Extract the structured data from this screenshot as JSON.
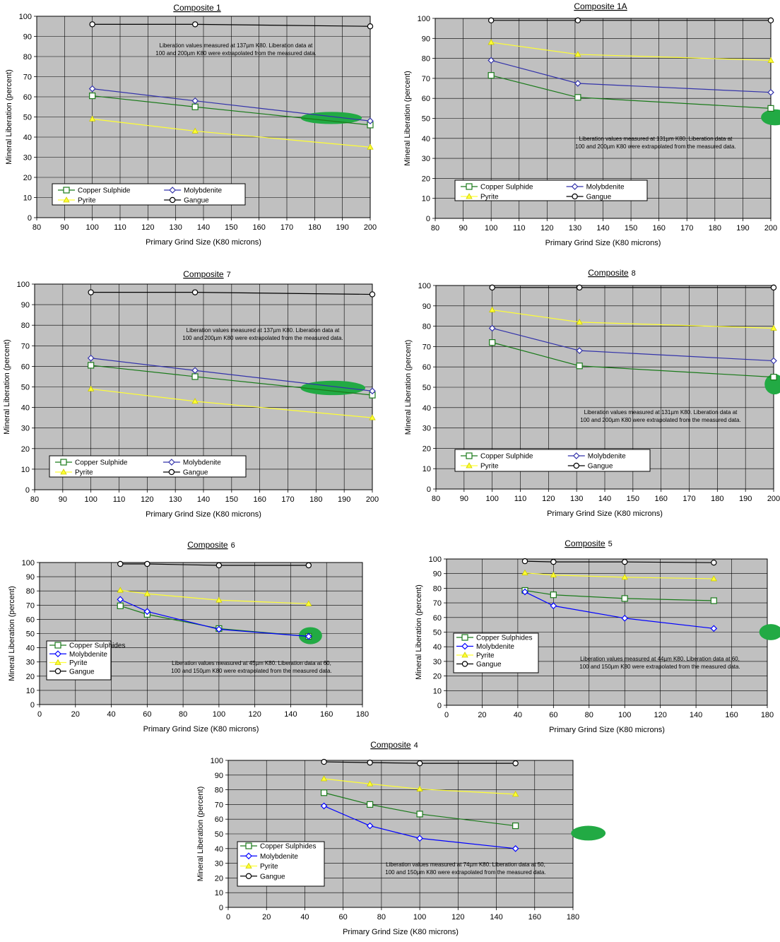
{
  "chart_data": [
    {
      "type": "line",
      "title": "Composite 1",
      "title_suffix": "",
      "xlabel": "Primary Grind Size (K80 microns)",
      "ylabel": "Mineral Liberation (percent)",
      "xlim": [
        80,
        200
      ],
      "xstep": 10,
      "ylim": [
        0,
        100
      ],
      "ystep": 10,
      "grid": true,
      "legend_columns": 2,
      "note": [
        "Liberation values measured at 137µm K80.  Liberation data at",
        "100 and 200µm K80 were extrapolated from the measured data."
      ],
      "highlight": {
        "x": 186,
        "y": 49.5,
        "rx": 11,
        "ry": 3
      },
      "series": [
        {
          "name": "Copper Sulphide",
          "color": "#1a7a1a",
          "marker": "square",
          "x": [
            100,
            137,
            200
          ],
          "y": [
            60.5,
            55,
            46
          ]
        },
        {
          "name": "Molybdenite",
          "color": "#3333aa",
          "marker": "diamond",
          "x": [
            100,
            137,
            200
          ],
          "y": [
            64,
            58,
            48
          ]
        },
        {
          "name": "Pyrite",
          "color": "#ffff33",
          "marker": "triangle",
          "x": [
            100,
            137,
            200
          ],
          "y": [
            49,
            43,
            35
          ]
        },
        {
          "name": "Gangue",
          "color": "#000000",
          "marker": "circle",
          "x": [
            100,
            137,
            200
          ],
          "y": [
            96,
            96,
            95
          ]
        }
      ]
    },
    {
      "type": "line",
      "title": "Composite 1A",
      "title_suffix": "",
      "xlabel": "Primary Grind Size (K80 microns)",
      "ylabel": "Mineral Liberation (percent)",
      "xlim": [
        80,
        200
      ],
      "xstep": 10,
      "ylim": [
        0,
        100
      ],
      "ystep": 10,
      "grid": true,
      "legend_columns": 2,
      "note": [
        "Liberation values measured at 131µm K80.  Liberation data at",
        "100 and 200µm K80 were extrapolated from the measured data."
      ],
      "highlight": {
        "x": 201.5,
        "y": 50.5,
        "rx": 5,
        "ry": 4
      },
      "series": [
        {
          "name": "Copper Sulphide",
          "color": "#1a7a1a",
          "marker": "square",
          "x": [
            100,
            131,
            200
          ],
          "y": [
            71.5,
            60.5,
            55
          ]
        },
        {
          "name": "Molybdenite",
          "color": "#3333aa",
          "marker": "diamond",
          "x": [
            100,
            131,
            200
          ],
          "y": [
            79,
            67.5,
            63
          ]
        },
        {
          "name": "Pyrite",
          "color": "#ffff33",
          "marker": "triangle",
          "x": [
            100,
            131,
            200
          ],
          "y": [
            88,
            82,
            79
          ]
        },
        {
          "name": "Gangue",
          "color": "#000000",
          "marker": "circle",
          "x": [
            100,
            131,
            200
          ],
          "y": [
            99,
            99,
            99
          ]
        }
      ]
    },
    {
      "type": "line",
      "title": "Composite",
      "title_suffix": "7",
      "xlabel": "Primary Grind Size (K80 microns)",
      "ylabel": "Mineral Liberation (percent)",
      "xlim": [
        80,
        200
      ],
      "xstep": 10,
      "ylim": [
        0,
        100
      ],
      "ystep": 10,
      "grid": true,
      "legend_columns": 2,
      "note": [
        "Liberation values measured at 137µm K80.  Liberation data at",
        "100 and 200µm K80 were extrapolated from the measured data."
      ],
      "highlight": {
        "x": 186,
        "y": 49.5,
        "rx": 11.5,
        "ry": 3.5
      },
      "series": [
        {
          "name": "Copper Sulphide",
          "color": "#1a7a1a",
          "marker": "square",
          "x": [
            100,
            137,
            200
          ],
          "y": [
            60.5,
            55,
            46
          ]
        },
        {
          "name": "Molybdenite",
          "color": "#3333aa",
          "marker": "diamond",
          "x": [
            100,
            137,
            200
          ],
          "y": [
            64,
            58,
            48
          ]
        },
        {
          "name": "Pyrite",
          "color": "#ffff33",
          "marker": "triangle",
          "x": [
            100,
            137,
            200
          ],
          "y": [
            49,
            43,
            35
          ]
        },
        {
          "name": "Gangue",
          "color": "#000000",
          "marker": "circle",
          "x": [
            100,
            137,
            200
          ],
          "y": [
            96,
            96,
            95
          ]
        }
      ]
    },
    {
      "type": "line",
      "title": "Composite",
      "title_suffix": "8",
      "xlabel": "Primary Grind Size (K80 microns)",
      "ylabel": "Mineral Liberation (percent)",
      "xlim": [
        80,
        200
      ],
      "xstep": 10,
      "ylim": [
        0,
        100
      ],
      "ystep": 10,
      "grid": true,
      "legend_columns": 2,
      "note": [
        "Liberation values measured at 131µm K80.  Liberation data at",
        "100 and 200µm K80 were extrapolated from the measured data."
      ],
      "highlight": {
        "x": 200.3,
        "y": 51.5,
        "rx": 3.5,
        "ry": 5
      },
      "series": [
        {
          "name": "Copper Sulphide",
          "color": "#1a7a1a",
          "marker": "square",
          "x": [
            100,
            131,
            200
          ],
          "y": [
            72,
            60.5,
            55
          ]
        },
        {
          "name": "Molybdenite",
          "color": "#3333aa",
          "marker": "diamond",
          "x": [
            100,
            131,
            200
          ],
          "y": [
            79,
            68,
            63
          ]
        },
        {
          "name": "Pyrite",
          "color": "#ffff33",
          "marker": "triangle",
          "x": [
            100,
            131,
            200
          ],
          "y": [
            88,
            82,
            79
          ]
        },
        {
          "name": "Gangue",
          "color": "#000000",
          "marker": "circle",
          "x": [
            100,
            131,
            200
          ],
          "y": [
            99,
            99,
            99
          ]
        }
      ]
    },
    {
      "type": "line",
      "title": "Composite",
      "title_suffix": "6",
      "xlabel": "Primary Grind Size (K80 microns)",
      "ylabel": "Mineral Liberation (percent)",
      "xlim": [
        0,
        180
      ],
      "xstep": 20,
      "ylim": [
        0,
        100
      ],
      "ystep": 10,
      "grid": true,
      "legend_columns": 1,
      "note": [
        "Liberation values measured at 45µm K80.  Liberation data at 60,",
        "100 and 150µm K80 were extrapolated from the measured data."
      ],
      "highlight": {
        "x": 151,
        "y": 48.5,
        "rx": 6.5,
        "ry": 6
      },
      "series": [
        {
          "name": "Copper Sulphides",
          "color": "#1a7a1a",
          "marker": "square",
          "x": [
            45,
            60,
            100,
            150
          ],
          "y": [
            69.5,
            63.5,
            53.5,
            48
          ]
        },
        {
          "name": "Molybdenite",
          "color": "#0000ff",
          "marker": "diamond",
          "x": [
            45,
            60,
            100,
            150
          ],
          "y": [
            74,
            65.5,
            53,
            48
          ]
        },
        {
          "name": "Pyrite",
          "color": "#ffff33",
          "marker": "triangle",
          "x": [
            45,
            60,
            100,
            150
          ],
          "y": [
            80.5,
            78,
            73.5,
            71
          ]
        },
        {
          "name": "Gangue",
          "color": "#000000",
          "marker": "circle",
          "x": [
            45,
            60,
            100,
            150
          ],
          "y": [
            99,
            99,
            98,
            98
          ]
        }
      ]
    },
    {
      "type": "line",
      "title": "Composite",
      "title_suffix": "5",
      "xlabel": "Primary Grind Size (K80 microns)",
      "ylabel": "Mineral Liberation (percent)",
      "xlim": [
        0,
        180
      ],
      "xstep": 20,
      "ylim": [
        0,
        100
      ],
      "ystep": 10,
      "grid": true,
      "legend_columns": 1,
      "note": [
        "Liberation values measured at 44µm K80.  Liberation data at 60,",
        "100 and 150µm K80 were extrapolated from the measured data."
      ],
      "highlight": {
        "x": 182,
        "y": 50,
        "rx": 6.5,
        "ry": 5.5
      },
      "series": [
        {
          "name": "Copper Sulphides",
          "color": "#1a7a1a",
          "marker": "square",
          "x": [
            44,
            60,
            100,
            150
          ],
          "y": [
            78.5,
            75.5,
            73,
            71.5
          ]
        },
        {
          "name": "Molybdenite",
          "color": "#0000ff",
          "marker": "diamond",
          "x": [
            44,
            60,
            100,
            150
          ],
          "y": [
            77.5,
            68,
            59.5,
            52.5
          ]
        },
        {
          "name": "Pyrite",
          "color": "#ffff33",
          "marker": "triangle",
          "x": [
            44,
            60,
            100,
            150
          ],
          "y": [
            90.5,
            89,
            87.5,
            86.5
          ]
        },
        {
          "name": "Gangue",
          "color": "#000000",
          "marker": "circle",
          "x": [
            44,
            60,
            100,
            150
          ],
          "y": [
            98.5,
            98,
            98,
            97.5
          ]
        }
      ]
    },
    {
      "type": "line",
      "title": "Composite",
      "title_suffix": "4",
      "xlabel": "Primary Grind Size (K80 microns)",
      "ylabel": "Mineral Liberation (percent)",
      "xlim": [
        0,
        180
      ],
      "xstep": 20,
      "ylim": [
        0,
        100
      ],
      "ystep": 10,
      "grid": true,
      "legend_columns": 1,
      "note": [
        "Liberation values measured at 74µm K80.  Liberation data at 50,",
        "100 and 150µm K80 were extrapolated from the measured data."
      ],
      "highlight": {
        "x": 188,
        "y": 50.5,
        "rx": 9,
        "ry": 5
      },
      "series": [
        {
          "name": "Copper Sulphides",
          "color": "#1a7a1a",
          "marker": "square",
          "x": [
            50,
            74,
            100,
            150
          ],
          "y": [
            78,
            70,
            63.5,
            55.5
          ]
        },
        {
          "name": "Molybdenite",
          "color": "#0000ff",
          "marker": "diamond",
          "x": [
            50,
            74,
            100,
            150
          ],
          "y": [
            69,
            55.5,
            47,
            40
          ]
        },
        {
          "name": "Pyrite",
          "color": "#ffff33",
          "marker": "triangle",
          "x": [
            50,
            74,
            100,
            150
          ],
          "y": [
            87.5,
            84,
            80.5,
            77
          ]
        },
        {
          "name": "Gangue",
          "color": "#000000",
          "marker": "circle",
          "x": [
            50,
            74,
            100,
            150
          ],
          "y": [
            99,
            98.5,
            98,
            98
          ]
        }
      ]
    }
  ],
  "colors": {
    "plot_background": "#c0c0c0",
    "grid": "#000000",
    "highlight": "#22aa44"
  }
}
